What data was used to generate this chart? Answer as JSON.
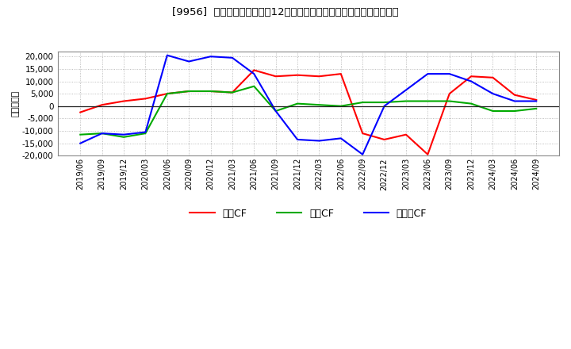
{
  "title": "[9956]  キャッシュフローの12か月移動合計の対前年同期増減額の推移",
  "ylabel": "（百万円）",
  "background_color": "#ffffff",
  "plot_bg_color": "#ffffff",
  "grid_color": "#aaaaaa",
  "x_labels": [
    "2019/06",
    "2019/09",
    "2019/12",
    "2020/03",
    "2020/06",
    "2020/09",
    "2020/12",
    "2021/03",
    "2021/06",
    "2021/09",
    "2021/12",
    "2022/03",
    "2022/06",
    "2022/09",
    "2022/12",
    "2023/03",
    "2023/06",
    "2023/09",
    "2023/12",
    "2024/03",
    "2024/06",
    "2024/09"
  ],
  "operating_cf": [
    -2500,
    500,
    2000,
    3000,
    5000,
    6000,
    6000,
    5500,
    14500,
    12000,
    12500,
    12000,
    13000,
    -11000,
    -13500,
    -11500,
    -19500,
    5000,
    12000,
    11500,
    4500,
    2500
  ],
  "investing_cf": [
    -11500,
    -11000,
    -12500,
    -11000,
    5000,
    6000,
    6000,
    5500,
    8000,
    -2000,
    1000,
    500,
    0,
    1500,
    1500,
    2000,
    2000,
    2000,
    1000,
    -2000,
    -2000,
    -1000
  ],
  "free_cf": [
    -15000,
    -11000,
    -11500,
    -10500,
    20500,
    18000,
    20000,
    19500,
    13000,
    -2000,
    -13500,
    -14000,
    -13000,
    -19500,
    0,
    6500,
    13000,
    13000,
    10000,
    5000,
    2000,
    2000
  ],
  "operating_color": "#ff0000",
  "investing_color": "#00aa00",
  "free_color": "#0000ff",
  "ylim": [
    -20000,
    22000
  ],
  "yticks": [
    -20000,
    -15000,
    -10000,
    -5000,
    0,
    5000,
    10000,
    15000,
    20000
  ],
  "legend_labels": [
    "営業CF",
    "投資CF",
    "フリーCF"
  ]
}
